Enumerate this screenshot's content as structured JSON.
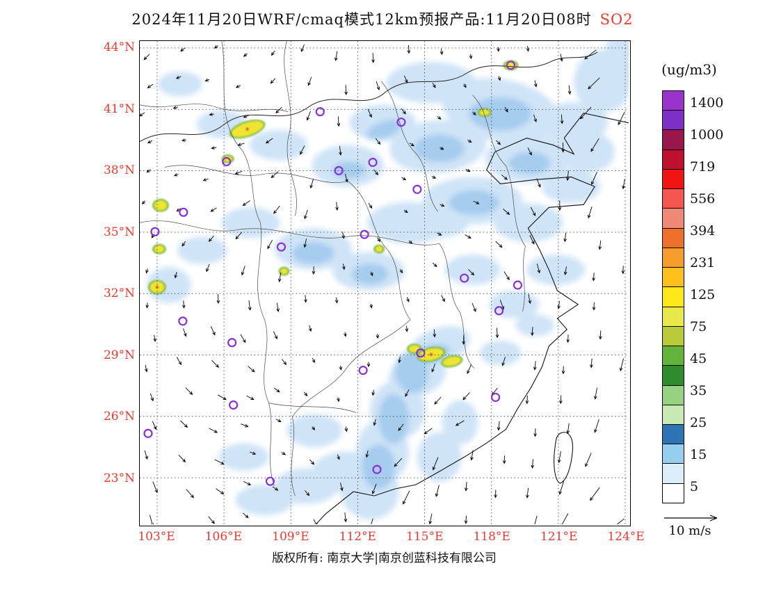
{
  "title": {
    "main": "2024年11月20日WRF/cmaq模式12km预报产品:11月20日08时",
    "pollutant": "SO2",
    "pollutant_color": "#E8392F"
  },
  "footer": {
    "copyright": "版权所有: 南京大学|南京创蓝科技有限公司"
  },
  "axes": {
    "lat_labels": [
      "44°N",
      "41°N",
      "38°N",
      "35°N",
      "32°N",
      "29°N",
      "26°N",
      "23°N"
    ],
    "lon_labels": [
      "103°E",
      "106°E",
      "109°E",
      "112°E",
      "115°E",
      "118°E",
      "121°E",
      "124°E"
    ],
    "label_color": "#E8392F"
  },
  "legend": {
    "unit": "(ug/m3)",
    "levels": [
      "1400",
      "1000",
      "719",
      "556",
      "394",
      "231",
      "125",
      "75",
      "45",
      "35",
      "25",
      "15",
      "5"
    ],
    "colors_top_to_bottom": [
      "#9933CC",
      "#7C2FC4",
      "#99174D",
      "#C01030",
      "#F01414",
      "#F4554F",
      "#F08878",
      "#ED712A",
      "#F59E2C",
      "#FFC01E",
      "#FFE818",
      "#E8E84A",
      "#B8CC3A",
      "#62B23C",
      "#2E8B2E",
      "#96D282",
      "#C8E8B4",
      "#2E74B5",
      "#96CEF0",
      "#DCEEFA",
      "#FFFFFF"
    ]
  },
  "wind": {
    "reference_label": "10 m/s"
  },
  "chart_data": {
    "type": "heatmap",
    "title": "2024年11月20日WRF/cmaq模式12km预报产品:11月20日08时 SO2",
    "model": "WRF/CMAQ 12km",
    "variable": "SO2",
    "unit": "ug/m3",
    "forecast_time": "11月20日08时",
    "lon_range_deg_e": [
      103,
      124
    ],
    "lat_range_deg_n": [
      23,
      44
    ],
    "colorbar_levels": [
      5,
      15,
      25,
      35,
      45,
      75,
      125,
      231,
      394,
      556,
      719,
      1000,
      1400
    ],
    "wind_reference_m_s": 10,
    "map_layers": {
      "patch_colors": {
        "1": "#CFE4F7",
        "2": "#A6CCEE"
      },
      "patches": [
        [
          420,
          60,
          65,
          30,
          0,
          1
        ],
        [
          520,
          100,
          85,
          45,
          10,
          1
        ],
        [
          430,
          152,
          70,
          38,
          -5,
          1
        ],
        [
          560,
          170,
          62,
          34,
          0,
          1
        ],
        [
          625,
          118,
          50,
          30,
          0,
          1
        ],
        [
          350,
          118,
          48,
          26,
          0,
          1
        ],
        [
          300,
          180,
          52,
          30,
          0,
          1
        ],
        [
          480,
          230,
          72,
          34,
          0,
          1
        ],
        [
          388,
          262,
          60,
          30,
          0,
          1
        ],
        [
          560,
          262,
          50,
          28,
          0,
          1
        ],
        [
          622,
          210,
          42,
          24,
          0,
          1
        ],
        [
          668,
          58,
          42,
          45,
          0,
          1
        ],
        [
          700,
          25,
          30,
          45,
          0,
          1
        ],
        [
          645,
          160,
          40,
          30,
          0,
          1
        ],
        [
          250,
          300,
          56,
          30,
          0,
          1
        ],
        [
          330,
          332,
          52,
          28,
          0,
          1
        ],
        [
          160,
          262,
          42,
          22,
          0,
          1
        ],
        [
          90,
          302,
          36,
          20,
          0,
          1
        ],
        [
          42,
          352,
          32,
          26,
          0,
          1
        ],
        [
          200,
          150,
          42,
          22,
          0,
          1
        ],
        [
          118,
          120,
          36,
          20,
          0,
          1
        ],
        [
          58,
          62,
          32,
          18,
          0,
          1
        ],
        [
          600,
          330,
          42,
          22,
          0,
          1
        ],
        [
          540,
          380,
          36,
          20,
          0,
          1
        ],
        [
          480,
          330,
          40,
          22,
          0,
          1
        ],
        [
          430,
          260,
          45,
          24,
          0,
          1
        ],
        [
          432,
          440,
          46,
          26,
          -20,
          1
        ],
        [
          400,
          482,
          42,
          30,
          -15,
          1
        ],
        [
          372,
          532,
          40,
          42,
          0,
          1
        ],
        [
          350,
          592,
          38,
          46,
          0,
          1
        ],
        [
          332,
          650,
          42,
          40,
          0,
          1
        ],
        [
          298,
          622,
          50,
          30,
          0,
          1
        ],
        [
          240,
          642,
          46,
          26,
          0,
          1
        ],
        [
          180,
          662,
          42,
          22,
          0,
          1
        ],
        [
          432,
          600,
          32,
          36,
          0,
          1
        ],
        [
          462,
          550,
          26,
          32,
          0,
          1
        ],
        [
          252,
          562,
          40,
          24,
          0,
          1
        ],
        [
          150,
          600,
          36,
          20,
          0,
          1
        ],
        [
          520,
          450,
          30,
          18,
          0,
          1
        ],
        [
          570,
          410,
          28,
          16,
          0,
          1
        ],
        [
          520,
          105,
          45,
          24,
          0,
          2
        ],
        [
          432,
          155,
          36,
          20,
          0,
          2
        ],
        [
          482,
          233,
          36,
          18,
          0,
          2
        ],
        [
          392,
          478,
          24,
          30,
          -10,
          2
        ],
        [
          366,
          545,
          22,
          36,
          0,
          2
        ],
        [
          344,
          614,
          24,
          32,
          0,
          2
        ],
        [
          420,
          452,
          28,
          14,
          -15,
          2
        ],
        [
          250,
          306,
          30,
          16,
          0,
          2
        ],
        [
          332,
          336,
          26,
          15,
          0,
          2
        ],
        [
          562,
          176,
          30,
          16,
          0,
          2
        ],
        [
          352,
          128,
          26,
          12,
          -20,
          2
        ],
        [
          302,
          186,
          24,
          12,
          0,
          2
        ]
      ],
      "hotspot_colors": {
        "ring": "#7FBE49",
        "core": "#F0E431",
        "dot": "#CC2A2A"
      },
      "hotspots": [
        [
          155,
          127,
          24,
          9,
          -18,
          1
        ],
        [
          30,
          237,
          9,
          7,
          0,
          0
        ],
        [
          25,
          355,
          10,
          8,
          0,
          1
        ],
        [
          28,
          300,
          7,
          5,
          0,
          0
        ],
        [
          420,
          452,
          18,
          8,
          -12,
          1
        ],
        [
          450,
          462,
          13,
          6,
          -12,
          0
        ],
        [
          396,
          444,
          8,
          5,
          0,
          0
        ],
        [
          535,
          35,
          8,
          5,
          0,
          0
        ],
        [
          497,
          103,
          7,
          4,
          0,
          0
        ],
        [
          127,
          170,
          6,
          4,
          0,
          0
        ],
        [
          345,
          300,
          5,
          4,
          0,
          0
        ],
        [
          208,
          332,
          5,
          4,
          0,
          0
        ]
      ],
      "marker_color": "#8B2FD6",
      "station_markers": [
        [
          535,
          35
        ],
        [
          260,
          102
        ],
        [
          377,
          117
        ],
        [
          125,
          174
        ],
        [
          287,
          187
        ],
        [
          336,
          175
        ],
        [
          400,
          214
        ],
        [
          63,
          247
        ],
        [
          22,
          275
        ],
        [
          204,
          297
        ],
        [
          324,
          279
        ],
        [
          468,
          342
        ],
        [
          545,
          352
        ],
        [
          518,
          389
        ],
        [
          62,
          404
        ],
        [
          133,
          435
        ],
        [
          405,
          450
        ],
        [
          322,
          475
        ],
        [
          513,
          514
        ],
        [
          135,
          525
        ],
        [
          12,
          566
        ],
        [
          188,
          635
        ],
        [
          342,
          618
        ]
      ]
    }
  }
}
